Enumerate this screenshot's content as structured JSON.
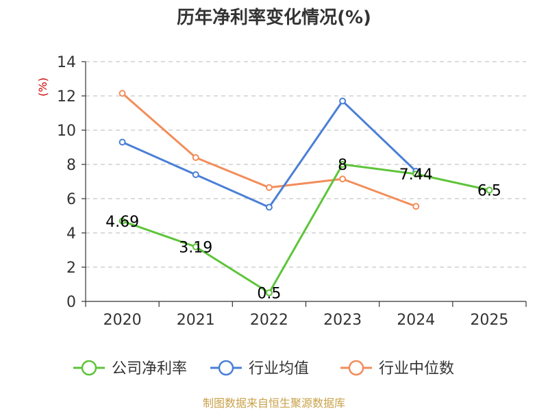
{
  "chart_data": {
    "type": "line",
    "title": "历年净利率变化情况(%)",
    "ylabel": "(%)",
    "categories": [
      "2020",
      "2021",
      "2022",
      "2023",
      "2024",
      "2025"
    ],
    "yticks": [
      "0",
      "2",
      "4",
      "6",
      "8",
      "10",
      "12",
      "14"
    ],
    "ylim": [
      0,
      14
    ],
    "grid": true,
    "legend": "bottom-center",
    "series": [
      {
        "name": "公司净利率",
        "color": "#5ec43a",
        "values": [
          4.69,
          3.19,
          0.5,
          8,
          7.44,
          6.5
        ],
        "labels": [
          "4.69",
          "3.19",
          "0.5",
          "8",
          "7.44",
          "6.5"
        ]
      },
      {
        "name": "行业均值",
        "color": "#4a7fd6",
        "values": [
          9.3,
          7.4,
          5.5,
          11.7,
          7.6,
          null
        ],
        "labels": []
      },
      {
        "name": "行业中位数",
        "color": "#f28d5a",
        "values": [
          12.15,
          8.4,
          6.65,
          7.15,
          5.55,
          null
        ],
        "labels": []
      }
    ]
  },
  "footer": {
    "source": "制图数据来自恒生聚源数据库"
  }
}
